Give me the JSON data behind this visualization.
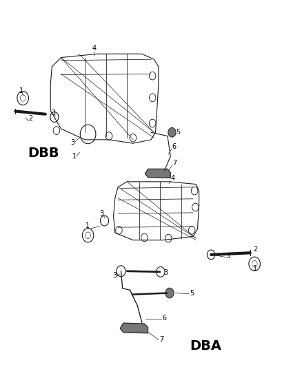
{
  "background_color": "#ffffff",
  "diagram_color": "#1a1a1a",
  "label_color": "#000000",
  "dbb_label": "DBB",
  "dba_label": "DBA",
  "lw": 0.8,
  "gray": "#777777",
  "fig_width": 4.38,
  "fig_height": 5.33,
  "dpi": 100
}
